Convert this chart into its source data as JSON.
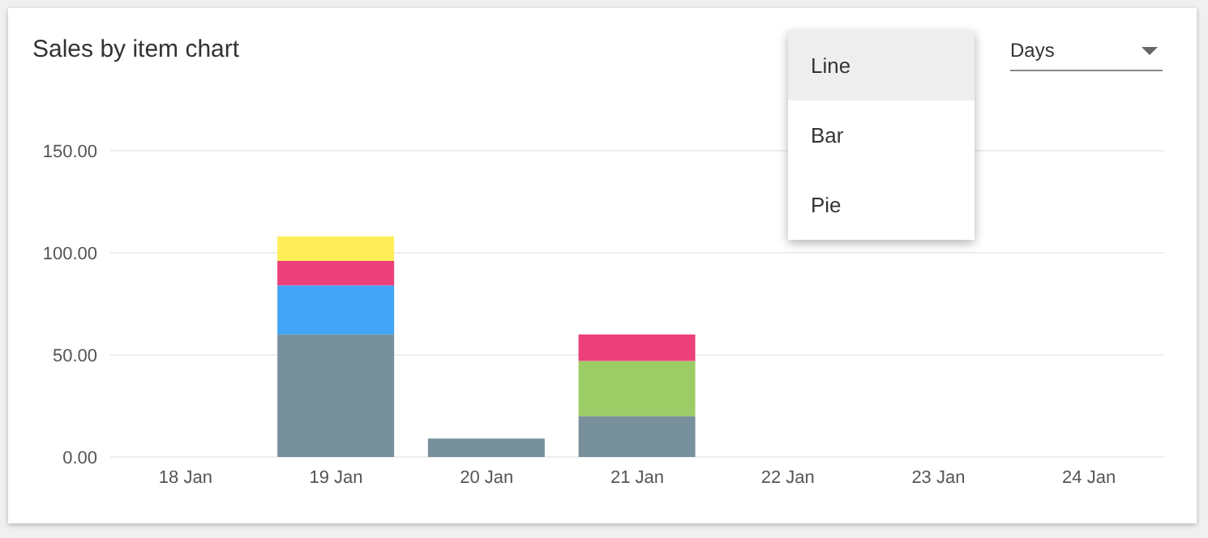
{
  "chart_data": {
    "type": "bar",
    "title": "Sales by item chart",
    "categories": [
      "18 Jan",
      "19 Jan",
      "20 Jan",
      "21 Jan",
      "22 Jan",
      "23 Jan",
      "24 Jan"
    ],
    "stacked": true,
    "series": [
      {
        "color": "#78909c",
        "values": [
          0,
          60,
          9,
          20,
          0,
          0,
          0
        ]
      },
      {
        "color": "#42a5f5",
        "values": [
          0,
          24,
          0,
          0,
          0,
          0,
          0
        ]
      },
      {
        "color": "#9ccc65",
        "values": [
          0,
          0,
          0,
          27,
          0,
          0,
          0
        ]
      },
      {
        "color": "#ec407a",
        "values": [
          0,
          12,
          0,
          13,
          0,
          0,
          0
        ]
      },
      {
        "color": "#ffee58",
        "values": [
          0,
          12,
          0,
          0,
          0,
          0,
          0
        ]
      }
    ],
    "ylim": [
      0,
      150
    ],
    "yticks": [
      {
        "value": 0,
        "label": "0.00"
      },
      {
        "value": 50,
        "label": "50.00"
      },
      {
        "value": 100,
        "label": "100.00"
      },
      {
        "value": 150,
        "label": "150.00"
      }
    ],
    "grid": "y",
    "annotations": [
      "Days",
      "Line",
      "Bar",
      "Pie"
    ]
  }
}
